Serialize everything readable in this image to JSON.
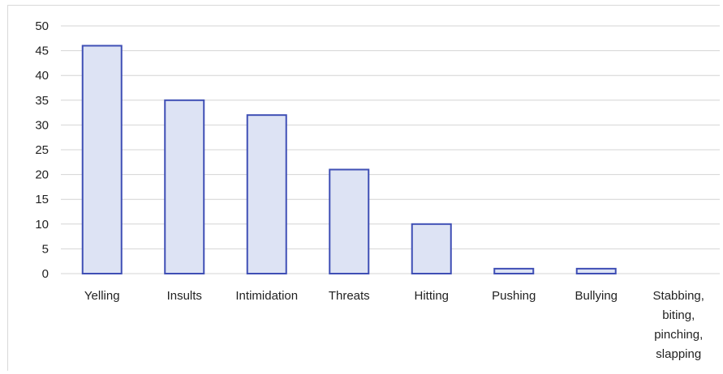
{
  "chart_data": {
    "type": "bar",
    "title": "",
    "xlabel": "",
    "ylabel": "",
    "categories": [
      [
        "Yelling"
      ],
      [
        "Insults"
      ],
      [
        "Intimidation"
      ],
      [
        "Threats"
      ],
      [
        "Hitting"
      ],
      [
        "Pushing"
      ],
      [
        "Bullying"
      ],
      [
        "Stabbing,",
        "biting,",
        "pinching,",
        "slapping"
      ]
    ],
    "values": [
      46,
      35,
      32,
      21,
      10,
      1,
      1,
      0
    ],
    "ylim": [
      0,
      50
    ],
    "yticks": [
      0,
      5,
      10,
      15,
      20,
      25,
      30,
      35,
      40,
      45,
      50
    ],
    "grid": true,
    "legend": "none",
    "colors": {
      "bar_fill": "#dde3f4",
      "bar_stroke": "#3f4fb5",
      "grid": "#d4d4d4"
    }
  }
}
